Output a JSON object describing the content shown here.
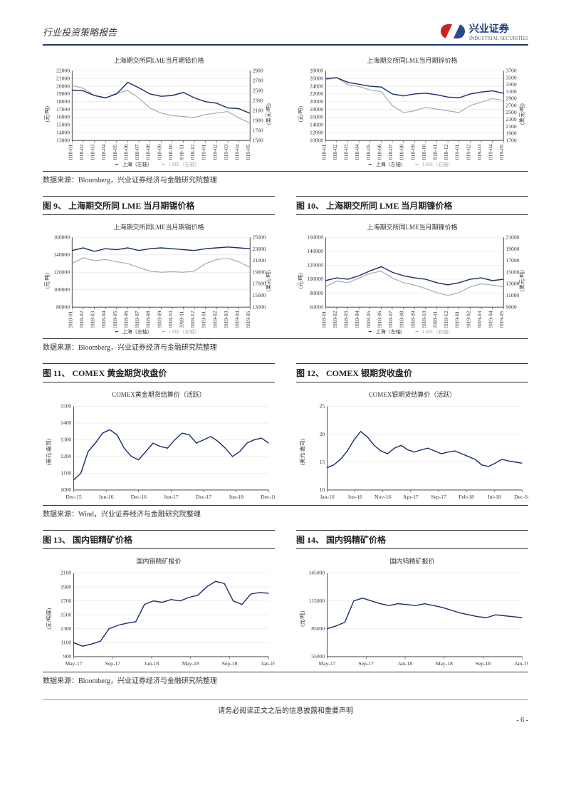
{
  "header": {
    "title": "行业投资策略报告"
  },
  "logo": {
    "cn": "兴业证券",
    "en": "INDUSTRIAL SECURITIES"
  },
  "footer": {
    "text": "请务必阅读正文之后的信息披露和重要声明",
    "page": "- 6 -"
  },
  "charts": [
    {
      "inner_title": "上海期交所同LME当月期铅价格",
      "yl_label": "(元/吨)",
      "yr_label": "(美元/吨)",
      "yl_min": 13000,
      "yl_max": 22000,
      "yl_step": 1000,
      "yr_min": 1500,
      "yr_max": 2900,
      "yr_step": 200,
      "x_labels": [
        "2018-01",
        "2018-02",
        "2018-03",
        "2018-04",
        "2018-05",
        "2018-06",
        "2018-07",
        "2018-08",
        "2018-09",
        "2018-10",
        "2018-11",
        "2018-12",
        "2019-01",
        "2019-02",
        "2019-03",
        "2019-04",
        "2019-05"
      ],
      "legend_l": "上海（左轴）",
      "legend_r": "LME（右轴）",
      "series_l": {
        "color": "#1a2d6b",
        "data": [
          19500,
          19400,
          18800,
          18500,
          19000,
          20500,
          19800,
          19000,
          18700,
          18800,
          19200,
          18500,
          18000,
          17800,
          17200,
          17100,
          16500
        ]
      },
      "series_r": {
        "color": "#aaa",
        "data": [
          2600,
          2550,
          2400,
          2350,
          2450,
          2500,
          2350,
          2150,
          2050,
          2000,
          1980,
          1960,
          2020,
          2050,
          2080,
          1950,
          1850
        ]
      }
    },
    {
      "inner_title": "上海期交所同LME当月期锌价格",
      "yl_label": "(元/吨)",
      "yr_label": "(美元/吨)",
      "yl_min": 10000,
      "yl_max": 28000,
      "yl_step": 2000,
      "yr_min": 1700,
      "yr_max": 3700,
      "yr_step": 200,
      "x_labels": [
        "2018-01",
        "2018-02",
        "2018-03",
        "2018-04",
        "2018-05",
        "2018-06",
        "2018-07",
        "2018-08",
        "2018-09",
        "2018-10",
        "2018-11",
        "2018-12",
        "2019-01",
        "2019-02",
        "2019-03",
        "2019-04",
        "2019-05"
      ],
      "legend_l": "上海（左轴）",
      "legend_r": "LME（右轴）",
      "series_l": {
        "color": "#1a2d6b",
        "data": [
          26000,
          26200,
          25000,
          24500,
          24000,
          23800,
          22000,
          21500,
          22000,
          22200,
          21800,
          21200,
          21000,
          22000,
          22500,
          22800,
          22200
        ]
      },
      "series_r": {
        "color": "#aaa",
        "data": [
          3450,
          3500,
          3300,
          3250,
          3150,
          3100,
          2700,
          2500,
          2550,
          2650,
          2600,
          2550,
          2500,
          2700,
          2800,
          2900,
          2850
        ]
      }
    },
    {
      "caption": "图 9、 上海期交所同 LME 当月期锡价格",
      "inner_title": "上海期交所同LME当月期锡价格",
      "yl_label": "(元/吨)",
      "yr_label": "(美元/吨)",
      "yl_min": 80000,
      "yl_max": 160000,
      "yl_step": 20000,
      "yr_min": 13000,
      "yr_max": 25000,
      "yr_step": 2000,
      "x_labels": [
        "2018-01",
        "2018-02",
        "2018-03",
        "2018-04",
        "2018-05",
        "2018-06",
        "2018-07",
        "2018-08",
        "2018-09",
        "2018-10",
        "2018-11",
        "2018-12",
        "2019-01",
        "2019-02",
        "2019-03",
        "2019-04",
        "2019-05"
      ],
      "legend_l": "上海（左轴）",
      "legend_r": "LME（右轴）",
      "series_l": {
        "color": "#1a2d6b",
        "data": [
          145000,
          148000,
          144000,
          147000,
          146000,
          148000,
          145000,
          147000,
          148000,
          147000,
          146000,
          145000,
          147000,
          148000,
          149000,
          148000,
          147000
        ]
      },
      "series_r": {
        "color": "#aaa",
        "data": [
          20500,
          21500,
          21000,
          21200,
          20800,
          20500,
          19800,
          19200,
          19000,
          19100,
          19000,
          19200,
          20500,
          21200,
          21400,
          20800,
          19800
        ]
      }
    },
    {
      "caption": "图 10、 上海期交所同 LME 当月期镍价格",
      "inner_title": "上海期交所同LME当月期镍价格",
      "yl_label": "(元/吨)",
      "yr_label": "(美元/吨)",
      "yl_min": 60000,
      "yl_max": 160000,
      "yl_step": 20000,
      "yr_min": 9000,
      "yr_max": 21000,
      "yr_step": 2000,
      "x_labels": [
        "2018-01",
        "2018-02",
        "2018-03",
        "2018-04",
        "2018-05",
        "2018-06",
        "2018-07",
        "2018-08",
        "2018-09",
        "2018-10",
        "2018-11",
        "2018-12",
        "2019-01",
        "2019-02",
        "2019-03",
        "2019-04",
        "2019-05"
      ],
      "legend_l": "上海（左轴）",
      "legend_r": "LME（右轴）",
      "series_l": {
        "color": "#1a2d6b",
        "data": [
          98000,
          102000,
          100000,
          105000,
          112000,
          118000,
          110000,
          105000,
          102000,
          100000,
          95000,
          92000,
          95000,
          100000,
          102000,
          98000,
          100000
        ]
      },
      "series_r": {
        "color": "#aaa",
        "data": [
          12500,
          13500,
          13200,
          14000,
          14800,
          15200,
          14000,
          13200,
          12800,
          12200,
          11500,
          11000,
          11500,
          12500,
          13000,
          12800,
          12500
        ]
      }
    },
    {
      "caption": "图 11、 COMEX 黄金期货收盘价",
      "inner_title": "COMEX黄金期货结算价（活跃）",
      "yl_label": "(美元/盎司)",
      "yl_min": 1000,
      "yl_max": 1500,
      "yl_step": 100,
      "x_labels": [
        "Dec-15",
        "Jun-16",
        "Dec-16",
        "Jun-17",
        "Dec-17",
        "Jun-18",
        "Dec-18"
      ],
      "series_l": {
        "color": "#1a2d6b",
        "data": [
          1060,
          1100,
          1230,
          1280,
          1340,
          1360,
          1330,
          1250,
          1200,
          1180,
          1230,
          1280,
          1260,
          1250,
          1300,
          1340,
          1330,
          1280,
          1300,
          1320,
          1290,
          1250,
          1200,
          1230,
          1280,
          1300,
          1310,
          1280
        ]
      }
    },
    {
      "caption": "图 12、 COMEX 银期货收盘价",
      "inner_title": "COMEX银期货结算价（活跃）",
      "yl_label": "(美元/盎司)",
      "yl_min": 10,
      "yl_max": 25,
      "yl_step": 5,
      "x_labels": [
        "Jan-16",
        "Jun-16",
        "Nov-16",
        "Apr-17",
        "Sep-17",
        "Feb-18",
        "Jul-18",
        "Dec-18"
      ],
      "series_l": {
        "color": "#1a2d6b",
        "data": [
          14,
          14.5,
          15.5,
          17,
          19,
          20.5,
          19.5,
          18,
          17,
          16.5,
          17.5,
          18,
          17.2,
          16.8,
          17.2,
          17.5,
          17,
          16.5,
          16.8,
          17,
          16.5,
          16,
          15.5,
          14.5,
          14.2,
          14.8,
          15.5,
          15.2,
          15,
          14.8
        ]
      }
    },
    {
      "caption": "图 13、 国内钼精矿价格",
      "inner_title": "国内钼精矿报价",
      "yl_label": "(元/吨度)",
      "yl_min": 900,
      "yl_max": 2100,
      "yl_step": 200,
      "x_labels": [
        "May-17",
        "Sep-17",
        "Jan-18",
        "May-18",
        "Sep-18",
        "Jan-19"
      ],
      "series_l": {
        "color": "#1a2d6b",
        "data": [
          1100,
          1050,
          1080,
          1120,
          1300,
          1350,
          1380,
          1400,
          1650,
          1700,
          1680,
          1720,
          1700,
          1750,
          1780,
          1900,
          1980,
          1950,
          1700,
          1650,
          1800,
          1820,
          1810
        ]
      }
    },
    {
      "caption": "图 14、 国内钨精矿价格",
      "inner_title": "国内钨精矿报价",
      "yl_label": "(元/吨)",
      "yl_min": 55000,
      "yl_max": 145000,
      "yl_step": 30000,
      "x_labels": [
        "May-17",
        "Sep-17",
        "Jan-18",
        "May-18",
        "Sep-18",
        "Jan-19"
      ],
      "series_l": {
        "color": "#1a2d6b",
        "data": [
          85000,
          88000,
          92000,
          115000,
          118000,
          115000,
          112000,
          110000,
          112000,
          111000,
          110000,
          112000,
          110000,
          108000,
          105000,
          102000,
          100000,
          98000,
          97000,
          100000,
          99000,
          98000,
          97000
        ]
      }
    }
  ],
  "sources": [
    {
      "text": "数据来源：Bloomberg，兴业证券经济与金融研究院整理"
    },
    {
      "text": "数据来源：Bloomberg，兴业证券经济与金融研究院整理"
    },
    {
      "text": "数据来源：Wind，兴业证券经济与金融研究院整理"
    },
    {
      "text": "数据来源：Bloomberg，兴业证券经济与金融研究院整理"
    }
  ],
  "style": {
    "brand_blue": "#1a3d7c",
    "brand_red": "#c22",
    "grid": "#e0e0e0",
    "axis": "#333",
    "gray_line": "#aaa",
    "dark_line": "#1a2d6b"
  }
}
